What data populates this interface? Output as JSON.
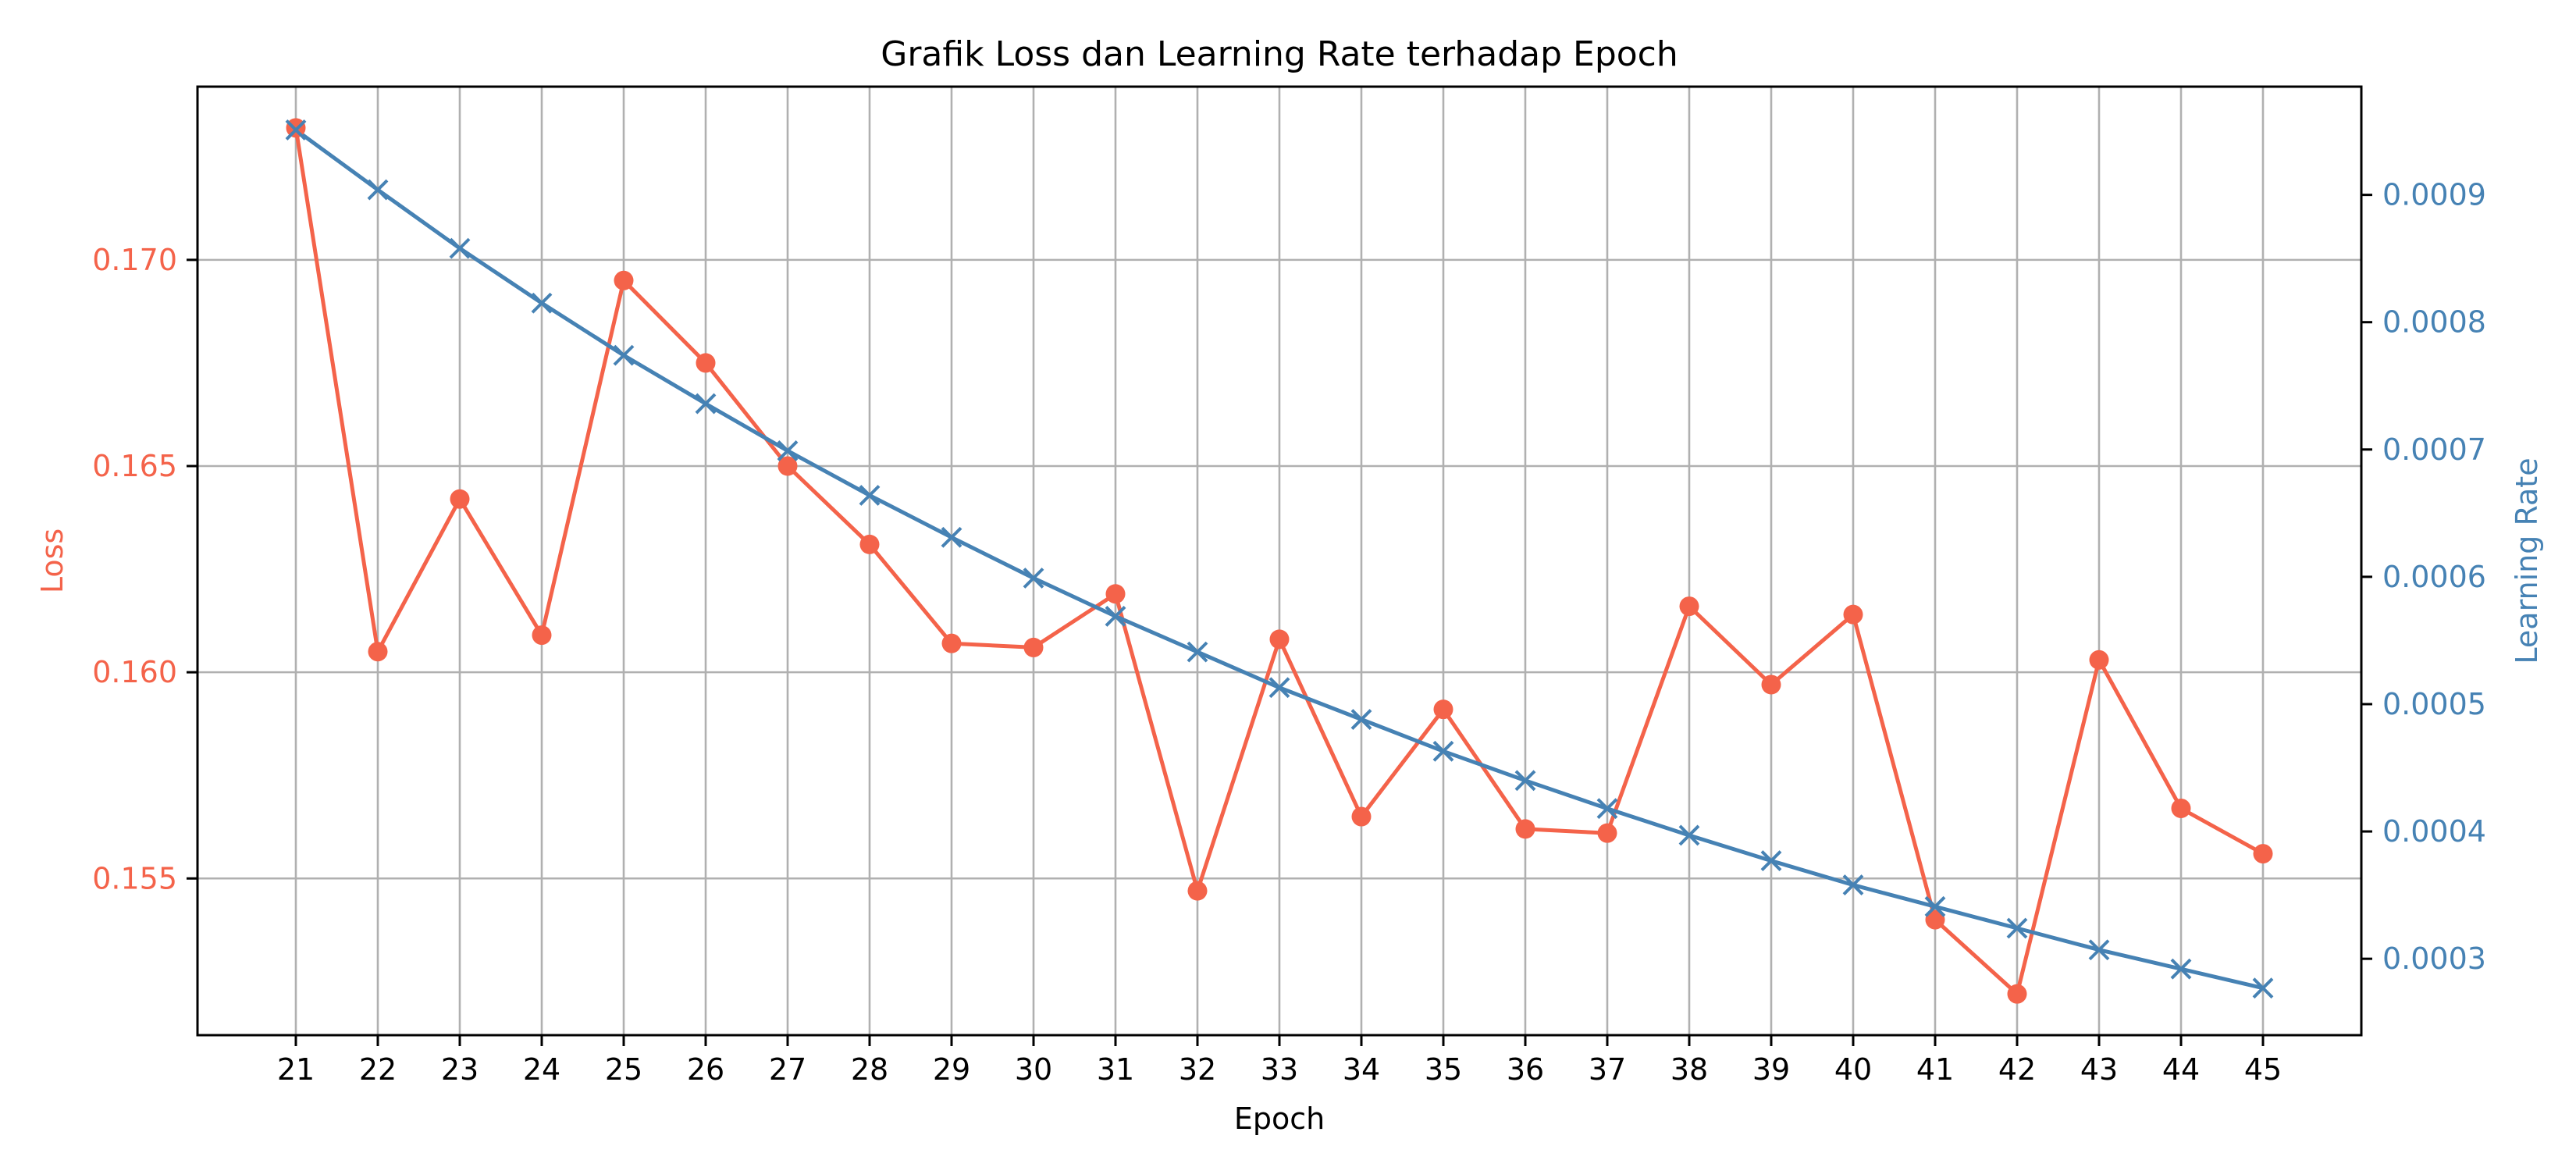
{
  "chart_data": {
    "type": "line",
    "title": "Grafik Loss dan Learning Rate terhadap Epoch",
    "xlabel": "Epoch",
    "ylabel_left": "Loss",
    "ylabel_right": "Learning Rate",
    "x": [
      21,
      22,
      23,
      24,
      25,
      26,
      27,
      28,
      29,
      30,
      31,
      32,
      33,
      34,
      35,
      36,
      37,
      38,
      39,
      40,
      41,
      42,
      43,
      44,
      45
    ],
    "x_ticks": [
      "21",
      "22",
      "23",
      "24",
      "25",
      "26",
      "27",
      "28",
      "29",
      "30",
      "31",
      "32",
      "33",
      "34",
      "35",
      "36",
      "37",
      "38",
      "39",
      "40",
      "41",
      "42",
      "43",
      "44",
      "45"
    ],
    "grid": true,
    "series": [
      {
        "axis": "left",
        "marker": "circle",
        "color": "#f4634a",
        "values": [
          0.1732,
          0.1605,
          0.1642,
          0.1609,
          0.1695,
          0.1675,
          0.165,
          0.1631,
          0.1607,
          0.1606,
          0.1619,
          0.1547,
          0.1608,
          0.1565,
          0.1591,
          0.1562,
          0.1561,
          0.1616,
          0.1597,
          0.1614,
          0.154,
          0.1522,
          0.1603,
          0.1567,
          0.1556
        ]
      },
      {
        "axis": "right",
        "marker": "x",
        "color": "#4682b4",
        "values": [
          0.000951,
          0.000904,
          0.000858,
          0.000815,
          0.000774,
          0.000736,
          0.000699,
          0.000664,
          0.000631,
          0.000599,
          0.000569,
          0.000541,
          0.000513,
          0.000488,
          0.000463,
          0.00044,
          0.000418,
          0.000397,
          0.000377,
          0.000358,
          0.000341,
          0.000324,
          0.000307,
          0.000292,
          0.000277
        ]
      }
    ],
    "y_left": {
      "lim": [
        0.1512,
        0.1742
      ],
      "ticks": [
        0.155,
        0.16,
        0.165,
        0.17
      ],
      "tick_labels": [
        "0.155",
        "0.160",
        "0.165",
        "0.170"
      ],
      "color": "#f4634a"
    },
    "y_right": {
      "lim": [
        0.00024,
        0.000985
      ],
      "ticks": [
        0.0003,
        0.0004,
        0.0005,
        0.0006,
        0.0007,
        0.0008,
        0.0009
      ],
      "tick_labels": [
        "0.0003",
        "0.0004",
        "0.0005",
        "0.0006",
        "0.0007",
        "0.0008",
        "0.0009"
      ],
      "color": "#4682b4"
    }
  }
}
